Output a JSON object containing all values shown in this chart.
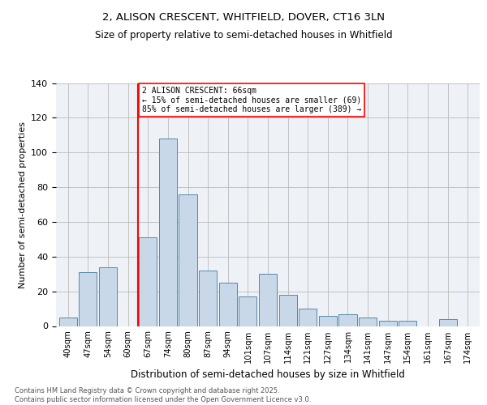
{
  "title1": "2, ALISON CRESCENT, WHITFIELD, DOVER, CT16 3LN",
  "title2": "Size of property relative to semi-detached houses in Whitfield",
  "xlabel": "Distribution of semi-detached houses by size in Whitfield",
  "ylabel": "Number of semi-detached properties",
  "categories": [
    "40sqm",
    "47sqm",
    "54sqm",
    "60sqm",
    "67sqm",
    "74sqm",
    "80sqm",
    "87sqm",
    "94sqm",
    "101sqm",
    "107sqm",
    "114sqm",
    "121sqm",
    "127sqm",
    "134sqm",
    "141sqm",
    "147sqm",
    "154sqm",
    "161sqm",
    "167sqm",
    "174sqm"
  ],
  "values": [
    5,
    31,
    34,
    0,
    51,
    108,
    76,
    32,
    25,
    17,
    30,
    18,
    10,
    6,
    7,
    5,
    3,
    3,
    0,
    4,
    0
  ],
  "bar_color": "#c8d8e8",
  "bar_edge_color": "#5588aa",
  "marker_line_index": 4,
  "marker_label": "2 ALISON CRESCENT: 66sqm",
  "smaller_pct": "15%",
  "smaller_count": 69,
  "larger_pct": "85%",
  "larger_count": 389,
  "vline_color": "red",
  "background_color": "#eef2f7",
  "grid_color": "#bbbbbb",
  "footer": "Contains HM Land Registry data © Crown copyright and database right 2025.\nContains public sector information licensed under the Open Government Licence v3.0.",
  "ylim": [
    0,
    140
  ],
  "yticks": [
    0,
    20,
    40,
    60,
    80,
    100,
    120,
    140
  ]
}
